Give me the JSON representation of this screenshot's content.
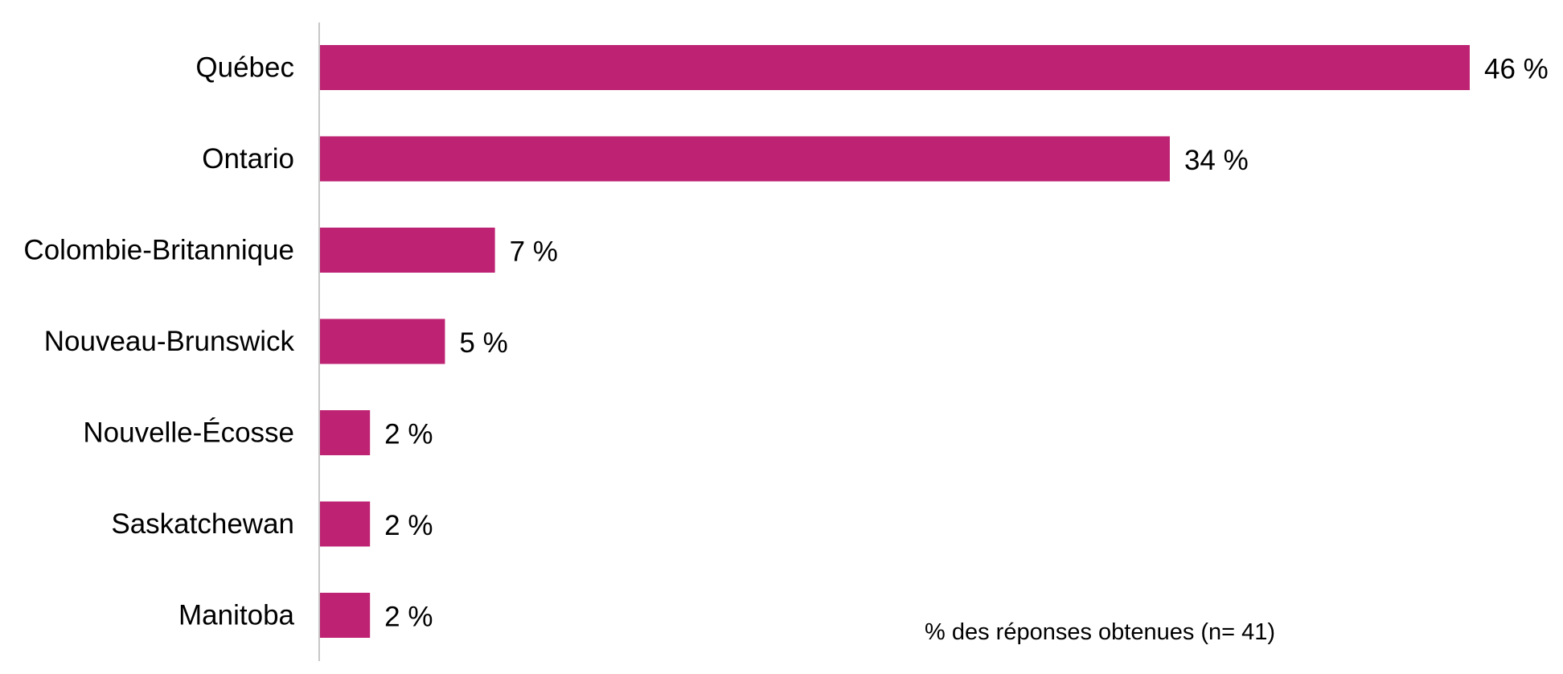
{
  "chart_data": {
    "type": "bar",
    "orientation": "horizontal",
    "categories": [
      "Québec",
      "Ontario",
      "Colombie-Britannique",
      "Nouveau-Brunswick",
      "Nouvelle-Écosse",
      "Saskatchewan",
      "Manitoba"
    ],
    "values": [
      46,
      34,
      7,
      5,
      2,
      2,
      2
    ],
    "value_labels": [
      "46 %",
      "34 %",
      "7 %",
      "5 %",
      "2 %",
      "2 %",
      "2 %"
    ],
    "note": "% des réponses obtenues  (n= 41)",
    "xlim": [
      0,
      46
    ],
    "grid": false,
    "legend": "none",
    "bar_color": "#BD2372",
    "axis_color": "#C8C8C8"
  }
}
